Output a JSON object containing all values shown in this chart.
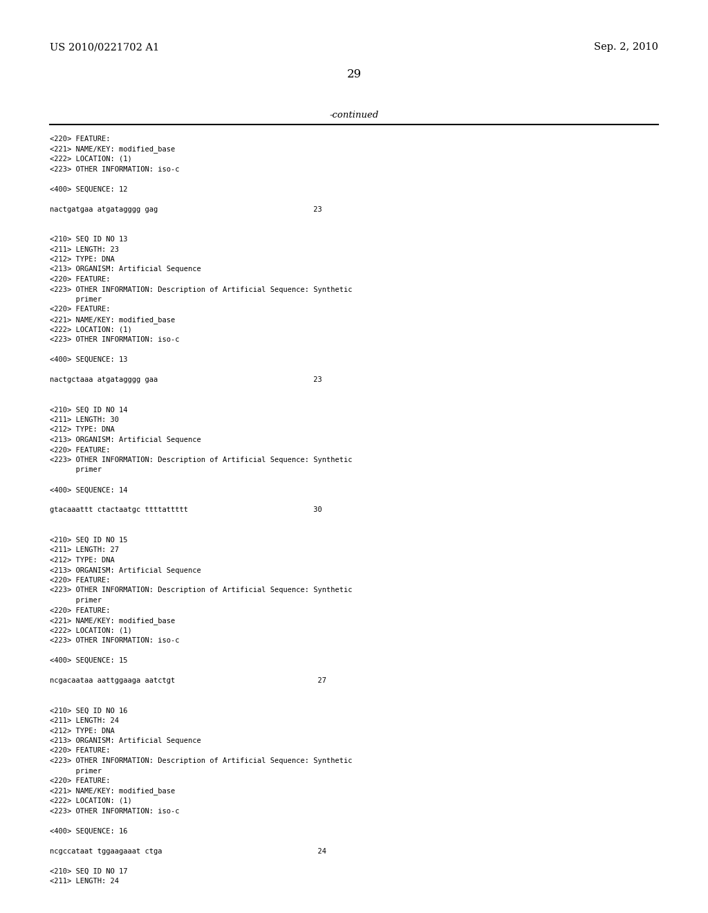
{
  "background_color": "#ffffff",
  "header_left": "US 2010/0221702 A1",
  "header_right": "Sep. 2, 2010",
  "page_number": "29",
  "continued_label": "-continued",
  "content": [
    "<220> FEATURE:",
    "<221> NAME/KEY: modified_base",
    "<222> LOCATION: (1)",
    "<223> OTHER INFORMATION: iso-c",
    "",
    "<400> SEQUENCE: 12",
    "",
    "nactgatgaa atgatagggg gag                                    23",
    "",
    "",
    "<210> SEQ ID NO 13",
    "<211> LENGTH: 23",
    "<212> TYPE: DNA",
    "<213> ORGANISM: Artificial Sequence",
    "<220> FEATURE:",
    "<223> OTHER INFORMATION: Description of Artificial Sequence: Synthetic",
    "      primer",
    "<220> FEATURE:",
    "<221> NAME/KEY: modified_base",
    "<222> LOCATION: (1)",
    "<223> OTHER INFORMATION: iso-c",
    "",
    "<400> SEQUENCE: 13",
    "",
    "nactgctaaa atgatagggg gaa                                    23",
    "",
    "",
    "<210> SEQ ID NO 14",
    "<211> LENGTH: 30",
    "<212> TYPE: DNA",
    "<213> ORGANISM: Artificial Sequence",
    "<220> FEATURE:",
    "<223> OTHER INFORMATION: Description of Artificial Sequence: Synthetic",
    "      primer",
    "",
    "<400> SEQUENCE: 14",
    "",
    "gtacaaattt ctactaatgc ttttattttt                             30",
    "",
    "",
    "<210> SEQ ID NO 15",
    "<211> LENGTH: 27",
    "<212> TYPE: DNA",
    "<213> ORGANISM: Artificial Sequence",
    "<220> FEATURE:",
    "<223> OTHER INFORMATION: Description of Artificial Sequence: Synthetic",
    "      primer",
    "<220> FEATURE:",
    "<221> NAME/KEY: modified_base",
    "<222> LOCATION: (1)",
    "<223> OTHER INFORMATION: iso-c",
    "",
    "<400> SEQUENCE: 15",
    "",
    "ncgacaataa aattggaaga aatctgt                                 27",
    "",
    "",
    "<210> SEQ ID NO 16",
    "<211> LENGTH: 24",
    "<212> TYPE: DNA",
    "<213> ORGANISM: Artificial Sequence",
    "<220> FEATURE:",
    "<223> OTHER INFORMATION: Description of Artificial Sequence: Synthetic",
    "      primer",
    "<220> FEATURE:",
    "<221> NAME/KEY: modified_base",
    "<222> LOCATION: (1)",
    "<223> OTHER INFORMATION: iso-c",
    "",
    "<400> SEQUENCE: 16",
    "",
    "ncgccataat tggaagaaat ctga                                    24",
    "",
    "<210> SEQ ID NO 17",
    "<211> LENGTH: 24"
  ]
}
